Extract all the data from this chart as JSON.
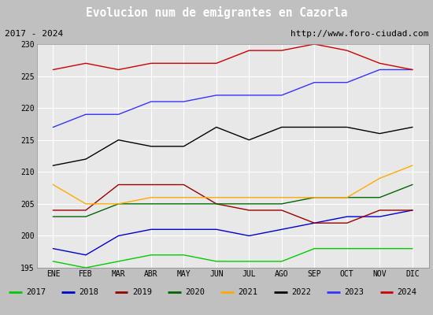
{
  "title": "Evolucion num de emigrantes en Cazorla",
  "subtitle_left": "2017 - 2024",
  "subtitle_right": "http://www.foro-ciudad.com",
  "x_labels": [
    "ENE",
    "FEB",
    "MAR",
    "ABR",
    "MAY",
    "JUN",
    "JUL",
    "AGO",
    "SEP",
    "OCT",
    "NOV",
    "DIC"
  ],
  "ylim": [
    195,
    230
  ],
  "yticks": [
    195,
    200,
    205,
    210,
    215,
    220,
    225,
    230
  ],
  "series": {
    "2017": {
      "color": "#00cc00",
      "values": [
        196,
        195,
        196,
        197,
        197,
        196,
        196,
        196,
        198,
        198,
        198,
        198
      ]
    },
    "2018": {
      "color": "#0000cc",
      "values": [
        198,
        197,
        200,
        201,
        201,
        201,
        200,
        201,
        202,
        203,
        203,
        204
      ]
    },
    "2019": {
      "color": "#990000",
      "values": [
        204,
        204,
        208,
        208,
        208,
        205,
        204,
        204,
        202,
        202,
        204,
        204
      ]
    },
    "2020": {
      "color": "#006600",
      "values": [
        203,
        203,
        205,
        205,
        205,
        205,
        205,
        205,
        206,
        206,
        206,
        208
      ]
    },
    "2021": {
      "color": "#ffaa00",
      "values": [
        208,
        205,
        205,
        206,
        206,
        206,
        206,
        206,
        206,
        206,
        209,
        211
      ]
    },
    "2022": {
      "color": "#000000",
      "values": [
        211,
        212,
        215,
        214,
        214,
        217,
        215,
        217,
        217,
        217,
        216,
        217
      ]
    },
    "2023": {
      "color": "#3333ff",
      "values": [
        217,
        219,
        219,
        221,
        221,
        222,
        222,
        222,
        224,
        224,
        226,
        226
      ]
    },
    "2024": {
      "color": "#cc0000",
      "values": [
        226,
        227,
        226,
        227,
        227,
        227,
        229,
        229,
        230,
        229,
        227,
        226
      ]
    }
  },
  "title_bg_color": "#4a7ebf",
  "title_font_color": "#ffffff",
  "subtitle_bg_color": "#d8d8d8",
  "plot_bg_color": "#e8e8e8",
  "grid_color": "#ffffff",
  "legend_bg_color": "#f0f0f0",
  "legend_border_color": "#aaaaaa"
}
